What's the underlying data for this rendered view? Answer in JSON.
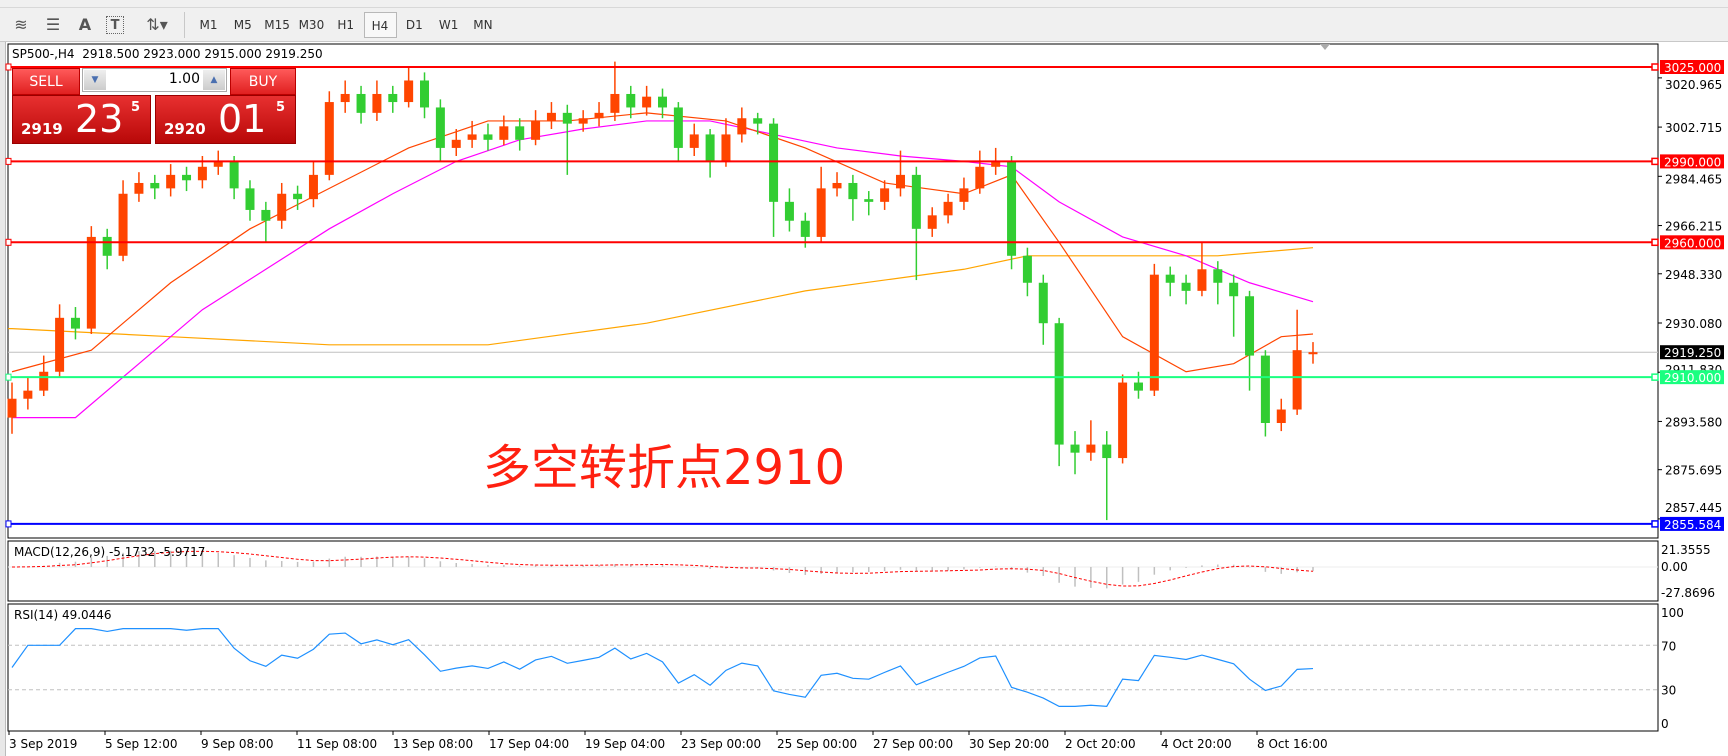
{
  "toolbar": {
    "tools": [
      {
        "icon": "fibonacci-fan-icon"
      },
      {
        "icon": "fibonacci-retracement-icon"
      },
      {
        "icon": "text-icon",
        "label": "A"
      },
      {
        "icon": "text-label-icon",
        "label": "T"
      },
      {
        "icon": "arrows-icon"
      }
    ],
    "timeframes": [
      "M1",
      "M5",
      "M15",
      "M30",
      "H1",
      "H4",
      "D1",
      "W1",
      "MN"
    ],
    "active_timeframe": "H4"
  },
  "chart": {
    "header": "SP500-,H4  2918.500 2923.000 2915.000 2919.250",
    "annotation": "多空转折点2910",
    "colors": {
      "bull": "#ff4500",
      "bear": "#32cd32",
      "ma_fast": "#ff4500",
      "ma_mid": "#ff00ff",
      "ma_slow": "#ffa500"
    },
    "price_ticks": [
      "3020.965",
      "3002.715",
      "2984.465",
      "2966.215",
      "2948.330",
      "2930.080",
      "2911.830",
      "2893.580",
      "2875.695",
      "2857.445"
    ],
    "hlines": [
      {
        "price": 3025,
        "label": "3025.000",
        "color": "#ff0000"
      },
      {
        "price": 2990,
        "label": "2990.000",
        "color": "#ff0000"
      },
      {
        "price": 2960,
        "label": "2960.000",
        "color": "#ff0000"
      },
      {
        "price": 2910,
        "label": "2910.000",
        "color": "#1aff80"
      },
      {
        "price": 2855.584,
        "label": "2855.584",
        "color": "#0000ff"
      }
    ],
    "current_price": {
      "price": 2919.25,
      "label": "2919.250"
    },
    "time_labels": [
      "3 Sep 2019",
      "5 Sep 12:00",
      "9 Sep 08:00",
      "11 Sep 08:00",
      "13 Sep 08:00",
      "17 Sep 04:00",
      "19 Sep 04:00",
      "23 Sep 00:00",
      "25 Sep 00:00",
      "27 Sep 00:00",
      "30 Sep 20:00",
      "2 Oct 20:00",
      "4 Oct 20:00",
      "8 Oct 16:00"
    ],
    "candles": [
      [
        2895,
        2908,
        2889,
        2902
      ],
      [
        2902,
        2910,
        2898,
        2905
      ],
      [
        2905,
        2918,
        2903,
        2912
      ],
      [
        2912,
        2937,
        2910,
        2932
      ],
      [
        2932,
        2936,
        2924,
        2928
      ],
      [
        2928,
        2966,
        2926,
        2962
      ],
      [
        2962,
        2965,
        2950,
        2955
      ],
      [
        2955,
        2983,
        2953,
        2978
      ],
      [
        2978,
        2986,
        2975,
        2982
      ],
      [
        2982,
        2985,
        2976,
        2980
      ],
      [
        2980,
        2989,
        2977,
        2985
      ],
      [
        2985,
        2988,
        2979,
        2983
      ],
      [
        2983,
        2992,
        2980,
        2988
      ],
      [
        2988,
        2994,
        2985,
        2990
      ],
      [
        2990,
        2992,
        2976,
        2980
      ],
      [
        2980,
        2983,
        2968,
        2972
      ],
      [
        2972,
        2975,
        2960,
        2968
      ],
      [
        2968,
        2982,
        2965,
        2978
      ],
      [
        2978,
        2981,
        2972,
        2976
      ],
      [
        2976,
        2990,
        2973,
        2985
      ],
      [
        2985,
        3016,
        2983,
        3012
      ],
      [
        3012,
        3020,
        3008,
        3015
      ],
      [
        3015,
        3018,
        3004,
        3008
      ],
      [
        3008,
        3020,
        3005,
        3015
      ],
      [
        3015,
        3018,
        3008,
        3012
      ],
      [
        3012,
        3025,
        3010,
        3020
      ],
      [
        3020,
        3023,
        3006,
        3010
      ],
      [
        3010,
        3013,
        2990,
        2995
      ],
      [
        2995,
        3002,
        2992,
        2998
      ],
      [
        2998,
        3005,
        2995,
        3000
      ],
      [
        3000,
        3004,
        2994,
        2998
      ],
      [
        2998,
        3007,
        2996,
        3003
      ],
      [
        3003,
        3006,
        2994,
        2998
      ],
      [
        2998,
        3009,
        2996,
        3005
      ],
      [
        3005,
        3012,
        3002,
        3008
      ],
      [
        3008,
        3011,
        2985,
        3004
      ],
      [
        3004,
        3009,
        3001,
        3006
      ],
      [
        3006,
        3012,
        3003,
        3008
      ],
      [
        3008,
        3027,
        3005,
        3015
      ],
      [
        3015,
        3018,
        3006,
        3010
      ],
      [
        3010,
        3018,
        3007,
        3014
      ],
      [
        3014,
        3017,
        3006,
        3010
      ],
      [
        3010,
        3012,
        2990,
        2995
      ],
      [
        2995,
        3004,
        2992,
        3000
      ],
      [
        3000,
        3002,
        2984,
        2990
      ],
      [
        2990,
        3006,
        2988,
        3000
      ],
      [
        3000,
        3010,
        2997,
        3006
      ],
      [
        3006,
        3008,
        3000,
        3004
      ],
      [
        3004,
        3006,
        2962,
        2975
      ],
      [
        2975,
        2980,
        2964,
        2968
      ],
      [
        2968,
        2971,
        2958,
        2962
      ],
      [
        2962,
        2988,
        2960,
        2980
      ],
      [
        2980,
        2986,
        2977,
        2982
      ],
      [
        2982,
        2985,
        2968,
        2976
      ],
      [
        2976,
        2979,
        2970,
        2975
      ],
      [
        2975,
        2983,
        2972,
        2980
      ],
      [
        2980,
        2994,
        2977,
        2985
      ],
      [
        2985,
        2988,
        2946,
        2965
      ],
      [
        2965,
        2973,
        2962,
        2970
      ],
      [
        2970,
        2978,
        2967,
        2975
      ],
      [
        2975,
        2984,
        2972,
        2980
      ],
      [
        2980,
        2994,
        2978,
        2988
      ],
      [
        2988,
        2995,
        2985,
        2990
      ],
      [
        2990,
        2992,
        2950,
        2955
      ],
      [
        2955,
        2958,
        2940,
        2945
      ],
      [
        2945,
        2948,
        2922,
        2930
      ],
      [
        2930,
        2932,
        2877,
        2885
      ],
      [
        2885,
        2890,
        2874,
        2882
      ],
      [
        2882,
        2894,
        2879,
        2885
      ],
      [
        2885,
        2890,
        2857,
        2880
      ],
      [
        2880,
        2911,
        2878,
        2908
      ],
      [
        2908,
        2912,
        2902,
        2905
      ],
      [
        2905,
        2952,
        2903,
        2948
      ],
      [
        2948,
        2951,
        2940,
        2945
      ],
      [
        2945,
        2948,
        2937,
        2942
      ],
      [
        2942,
        2960,
        2940,
        2950
      ],
      [
        2950,
        2953,
        2937,
        2945
      ],
      [
        2945,
        2948,
        2925,
        2940
      ],
      [
        2940,
        2942,
        2905,
        2918
      ],
      [
        2918,
        2920,
        2888,
        2893
      ],
      [
        2893,
        2902,
        2890,
        2898
      ],
      [
        2898,
        2935,
        2896,
        2920
      ],
      [
        2918.5,
        2923,
        2915,
        2919.25
      ]
    ],
    "ma_fast": [
      [
        0,
        2912
      ],
      [
        5,
        2920
      ],
      [
        10,
        2945
      ],
      [
        15,
        2965
      ],
      [
        20,
        2980
      ],
      [
        25,
        2995
      ],
      [
        30,
        3005
      ],
      [
        35,
        3005
      ],
      [
        40,
        3008
      ],
      [
        45,
        3005
      ],
      [
        50,
        2995
      ],
      [
        55,
        2982
      ],
      [
        60,
        2978
      ],
      [
        63,
        2985
      ],
      [
        66,
        2960
      ],
      [
        70,
        2925
      ],
      [
        74,
        2912
      ],
      [
        77,
        2915
      ],
      [
        80,
        2925
      ],
      [
        82,
        2926
      ]
    ],
    "ma_mid": [
      [
        0,
        2895
      ],
      [
        4,
        2895
      ],
      [
        8,
        2915
      ],
      [
        12,
        2935
      ],
      [
        16,
        2950
      ],
      [
        20,
        2965
      ],
      [
        24,
        2978
      ],
      [
        28,
        2990
      ],
      [
        32,
        2998
      ],
      [
        36,
        3002
      ],
      [
        40,
        3005
      ],
      [
        44,
        3005
      ],
      [
        48,
        3000
      ],
      [
        52,
        2995
      ],
      [
        56,
        2992
      ],
      [
        60,
        2990
      ],
      [
        63,
        2988
      ],
      [
        66,
        2975
      ],
      [
        70,
        2962
      ],
      [
        74,
        2955
      ],
      [
        78,
        2945
      ],
      [
        82,
        2938
      ]
    ],
    "ma_slow": [
      [
        0,
        2928
      ],
      [
        10,
        2925
      ],
      [
        20,
        2922
      ],
      [
        30,
        2922
      ],
      [
        40,
        2930
      ],
      [
        50,
        2942
      ],
      [
        60,
        2950
      ],
      [
        64,
        2955
      ],
      [
        70,
        2955
      ],
      [
        76,
        2955
      ],
      [
        82,
        2958
      ]
    ]
  },
  "macd": {
    "label": "MACD(12,26,9) -5.1732 -5.9717",
    "ticks": [
      "21.3555",
      "0.00",
      "-27.8696"
    ]
  },
  "rsi": {
    "label": "RSI(14) 49.0446",
    "ticks": [
      "100",
      "70",
      "30",
      "0"
    ]
  },
  "trade_panel": {
    "sell_label": "SELL",
    "buy_label": "BUY",
    "lots": "1.00",
    "sell_price": {
      "prefix": "2919",
      "big": "23",
      "sup": "5"
    },
    "buy_price": {
      "prefix": "2920",
      "big": "01",
      "sup": "5"
    }
  }
}
